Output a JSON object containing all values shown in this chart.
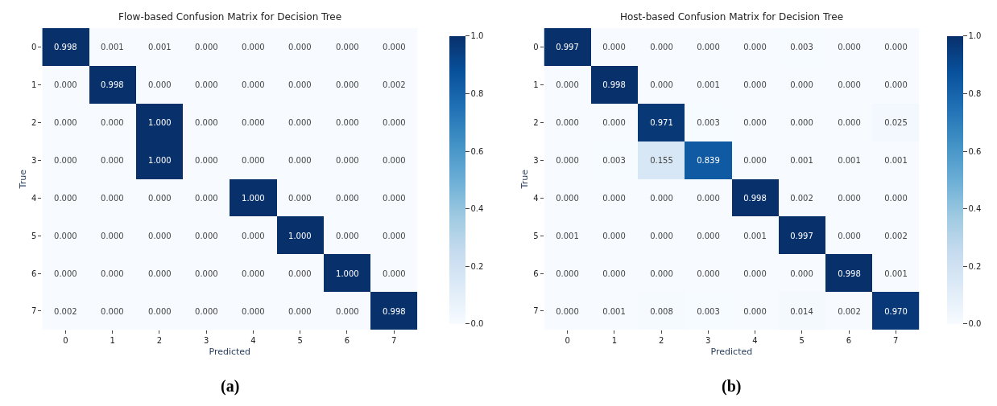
{
  "chart_data": [
    {
      "type": "heatmap",
      "title": "Flow-based Confusion Matrix for Decision Tree",
      "xlabel": "Predicted",
      "ylabel": "True",
      "annotations": [
        "(a)"
      ],
      "categories": [
        "0",
        "1",
        "2",
        "3",
        "4",
        "5",
        "6",
        "7"
      ],
      "y_categories": [
        "0",
        "1",
        "2",
        "3",
        "4",
        "5",
        "6",
        "7"
      ],
      "cells": [
        [
          0.998,
          0.001,
          0.001,
          0,
          0,
          0,
          0,
          0
        ],
        [
          0,
          0.998,
          0,
          0,
          0,
          0,
          0,
          0.002
        ],
        [
          0,
          0,
          1,
          0,
          0,
          0,
          0,
          0
        ],
        [
          0,
          0,
          1,
          0,
          0,
          0,
          0,
          0
        ],
        [
          0,
          0,
          0,
          0,
          1,
          0,
          0,
          0
        ],
        [
          0,
          0,
          0,
          0,
          0,
          1,
          0,
          0
        ],
        [
          0,
          0,
          0,
          0,
          0,
          0,
          1,
          0
        ],
        [
          0.002,
          0,
          0,
          0,
          0,
          0,
          0,
          0.998
        ]
      ],
      "cell_labels": [
        [
          "0.998",
          "0.001",
          "0.001",
          "0.000",
          "0.000",
          "0.000",
          "0.000",
          "0.000"
        ],
        [
          "0.000",
          "0.998",
          "0.000",
          "0.000",
          "0.000",
          "0.000",
          "0.000",
          "0.002"
        ],
        [
          "0.000",
          "0.000",
          "1.000",
          "0.000",
          "0.000",
          "0.000",
          "0.000",
          "0.000"
        ],
        [
          "0.000",
          "0.000",
          "1.000",
          "0.000",
          "0.000",
          "0.000",
          "0.000",
          "0.000"
        ],
        [
          "0.000",
          "0.000",
          "0.000",
          "0.000",
          "1.000",
          "0.000",
          "0.000",
          "0.000"
        ],
        [
          "0.000",
          "0.000",
          "0.000",
          "0.000",
          "0.000",
          "1.000",
          "0.000",
          "0.000"
        ],
        [
          "0.000",
          "0.000",
          "0.000",
          "0.000",
          "0.000",
          "0.000",
          "1.000",
          "0.000"
        ],
        [
          "0.002",
          "0.000",
          "0.000",
          "0.000",
          "0.000",
          "0.000",
          "0.000",
          "0.998"
        ]
      ],
      "clim": [
        0,
        1
      ],
      "cticks": [
        {
          "value": 0,
          "label": "0.0"
        },
        {
          "value": 0.2,
          "label": "0.2"
        },
        {
          "value": 0.4,
          "label": "0.4"
        },
        {
          "value": 0.6,
          "label": "0.6"
        },
        {
          "value": 0.8,
          "label": "0.8"
        },
        {
          "value": 1,
          "label": "1.0"
        }
      ]
    },
    {
      "type": "heatmap",
      "title": "Host-based Confusion Matrix for Decision Tree",
      "xlabel": "Predicted",
      "ylabel": "True",
      "annotations": [
        "(b)"
      ],
      "categories": [
        "0",
        "1",
        "2",
        "3",
        "4",
        "5",
        "6",
        "7"
      ],
      "y_categories": [
        "0",
        "1",
        "2",
        "3",
        "4",
        "5",
        "6",
        "7"
      ],
      "cells": [
        [
          0.997,
          0,
          0,
          0,
          0,
          0.003,
          0,
          0
        ],
        [
          0,
          0.998,
          0,
          0.001,
          0,
          0,
          0,
          0
        ],
        [
          0,
          0,
          0.971,
          0.003,
          0,
          0,
          0,
          0.025
        ],
        [
          0,
          0.003,
          0.155,
          0.839,
          0,
          0.001,
          0.001,
          0.001
        ],
        [
          0,
          0,
          0,
          0,
          0.998,
          0.002,
          0,
          0
        ],
        [
          0.001,
          0,
          0,
          0,
          0.001,
          0.997,
          0,
          0.002
        ],
        [
          0,
          0,
          0,
          0,
          0,
          0,
          0.998,
          0.001
        ],
        [
          0,
          0.001,
          0.008,
          0.003,
          0,
          0.014,
          0.002,
          0.97
        ]
      ],
      "cell_labels": [
        [
          "0.997",
          "0.000",
          "0.000",
          "0.000",
          "0.000",
          "0.003",
          "0.000",
          "0.000"
        ],
        [
          "0.000",
          "0.998",
          "0.000",
          "0.001",
          "0.000",
          "0.000",
          "0.000",
          "0.000"
        ],
        [
          "0.000",
          "0.000",
          "0.971",
          "0.003",
          "0.000",
          "0.000",
          "0.000",
          "0.025"
        ],
        [
          "0.000",
          "0.003",
          "0.155",
          "0.839",
          "0.000",
          "0.001",
          "0.001",
          "0.001"
        ],
        [
          "0.000",
          "0.000",
          "0.000",
          "0.000",
          "0.998",
          "0.002",
          "0.000",
          "0.000"
        ],
        [
          "0.001",
          "0.000",
          "0.000",
          "0.000",
          "0.001",
          "0.997",
          "0.000",
          "0.002"
        ],
        [
          "0.000",
          "0.000",
          "0.000",
          "0.000",
          "0.000",
          "0.000",
          "0.998",
          "0.001"
        ],
        [
          "0.000",
          "0.001",
          "0.008",
          "0.003",
          "0.000",
          "0.014",
          "0.002",
          "0.970"
        ]
      ],
      "clim": [
        0,
        1
      ],
      "cticks": [
        {
          "value": 0,
          "label": "0.0"
        },
        {
          "value": 0.2,
          "label": "0.2"
        },
        {
          "value": 0.4,
          "label": "0.4"
        },
        {
          "value": 0.6,
          "label": "0.6"
        },
        {
          "value": 0.8,
          "label": "0.8"
        },
        {
          "value": 1,
          "label": "1.0"
        }
      ]
    }
  ]
}
